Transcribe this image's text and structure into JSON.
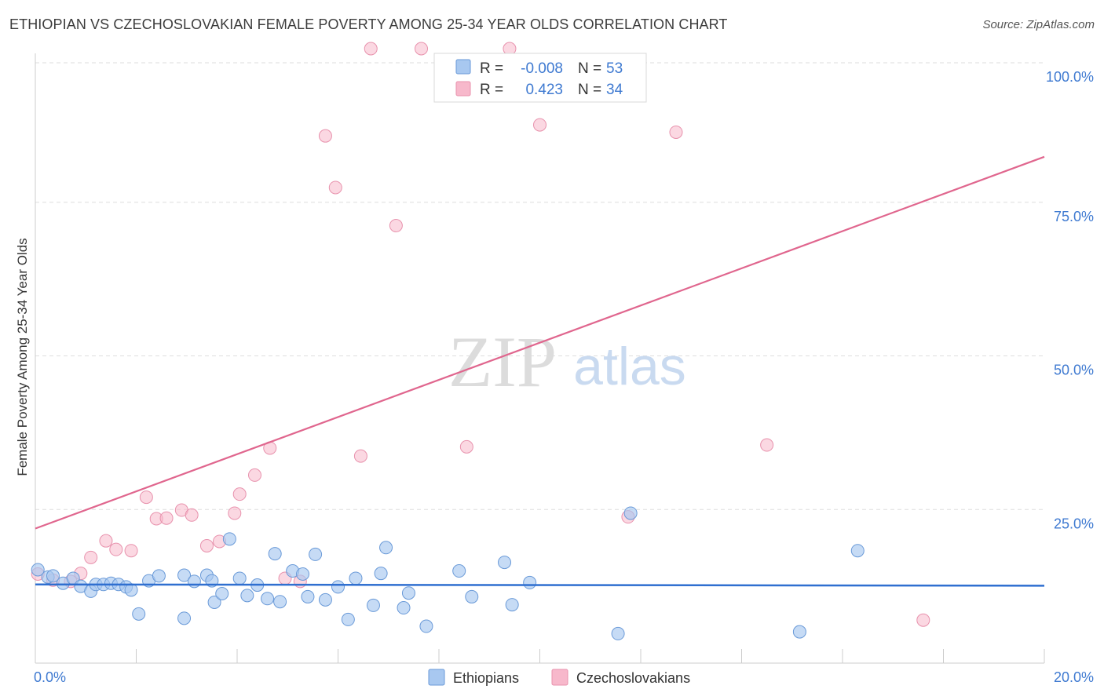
{
  "title": "ETHIOPIAN VS CZECHOSLOVAKIAN FEMALE POVERTY AMONG 25-34 YEAR OLDS CORRELATION CHART",
  "source": "Source: ZipAtlas.com",
  "watermark": {
    "zip": "ZIP",
    "atlas": "atlas"
  },
  "colors": {
    "ethiopians_fill": "#a8c8f0",
    "ethiopians_stroke": "#6a9ad8",
    "ethiopians_line": "#2f6fd0",
    "czech_fill": "#f7b8cb",
    "czech_stroke": "#e892ad",
    "czech_line": "#e0668e",
    "tick_text": "#3f7ad1",
    "grid": "#dddddd"
  },
  "legend": {
    "rows": [
      {
        "r_label": "R =",
        "r_value": "-0.008",
        "n_label": "N =",
        "n_value": "53"
      },
      {
        "r_label": "R =",
        "r_value": "0.423",
        "n_label": "N =",
        "n_value": "34"
      }
    ]
  },
  "chart_data": {
    "type": "scatter",
    "title": "ETHIOPIAN VS CZECHOSLOVAKIAN FEMALE POVERTY AMONG 25-34 YEAR OLDS CORRELATION CHART",
    "xlabel": "",
    "ylabel": "Female Poverty Among 25-34 Year Olds",
    "xlim": [
      0,
      20
    ],
    "ylim": [
      0,
      100
    ],
    "x_tick_labels": [
      "0.0%",
      "20.0%"
    ],
    "y_ticks": [
      25,
      50,
      75,
      100
    ],
    "y_tick_labels": [
      "25.0%",
      "50.0%",
      "75.0%",
      "100.0%"
    ],
    "grid": true,
    "legend_position": "top-center",
    "series": [
      {
        "name": "Ethiopians",
        "r": -0.008,
        "n": 53,
        "trend": {
          "x": [
            0,
            20
          ],
          "y": [
            12.8,
            12.6
          ]
        },
        "points": [
          [
            0.05,
            15.2
          ],
          [
            0.25,
            14.0
          ],
          [
            0.35,
            14.2
          ],
          [
            0.55,
            13.0
          ],
          [
            0.75,
            13.8
          ],
          [
            0.9,
            12.5
          ],
          [
            1.1,
            11.7
          ],
          [
            1.2,
            12.8
          ],
          [
            1.35,
            12.8
          ],
          [
            1.5,
            13.0
          ],
          [
            1.65,
            12.8
          ],
          [
            1.8,
            12.4
          ],
          [
            1.9,
            11.9
          ],
          [
            2.05,
            8.0
          ],
          [
            2.25,
            13.4
          ],
          [
            2.45,
            14.2
          ],
          [
            2.95,
            14.3
          ],
          [
            3.15,
            13.3
          ],
          [
            2.95,
            7.3
          ],
          [
            3.4,
            14.3
          ],
          [
            3.5,
            13.4
          ],
          [
            3.55,
            9.9
          ],
          [
            3.7,
            11.3
          ],
          [
            3.85,
            20.2
          ],
          [
            4.05,
            13.8
          ],
          [
            4.2,
            11.0
          ],
          [
            4.4,
            12.7
          ],
          [
            4.6,
            10.5
          ],
          [
            4.75,
            17.8
          ],
          [
            4.85,
            10.0
          ],
          [
            5.1,
            15.0
          ],
          [
            5.3,
            14.5
          ],
          [
            5.4,
            10.8
          ],
          [
            5.55,
            17.7
          ],
          [
            5.75,
            10.3
          ],
          [
            6.0,
            12.4
          ],
          [
            6.2,
            7.1
          ],
          [
            6.35,
            13.8
          ],
          [
            6.7,
            9.4
          ],
          [
            6.85,
            14.6
          ],
          [
            6.95,
            18.8
          ],
          [
            7.3,
            9.0
          ],
          [
            7.4,
            11.4
          ],
          [
            7.75,
            6.0
          ],
          [
            8.4,
            15.0
          ],
          [
            8.65,
            10.8
          ],
          [
            9.3,
            16.4
          ],
          [
            9.45,
            9.5
          ],
          [
            9.8,
            13.1
          ],
          [
            11.55,
            4.8
          ],
          [
            11.8,
            24.4
          ],
          [
            15.15,
            5.1
          ],
          [
            16.3,
            18.3
          ]
        ]
      },
      {
        "name": "Czechoslovakians",
        "r": 0.423,
        "n": 34,
        "trend": {
          "x": [
            0,
            20
          ],
          "y": [
            21.9,
            82.4
          ]
        },
        "points": [
          [
            0.05,
            14.5
          ],
          [
            0.35,
            13.5
          ],
          [
            0.7,
            13.3
          ],
          [
            0.9,
            14.6
          ],
          [
            1.1,
            17.2
          ],
          [
            1.4,
            19.9
          ],
          [
            1.6,
            18.5
          ],
          [
            1.9,
            18.3
          ],
          [
            2.2,
            27.0
          ],
          [
            2.4,
            23.5
          ],
          [
            2.6,
            23.6
          ],
          [
            2.9,
            24.9
          ],
          [
            3.1,
            24.1
          ],
          [
            3.4,
            19.1
          ],
          [
            3.65,
            19.8
          ],
          [
            3.95,
            24.4
          ],
          [
            4.05,
            27.5
          ],
          [
            4.35,
            30.6
          ],
          [
            4.65,
            35.0
          ],
          [
            4.95,
            13.8
          ],
          [
            5.25,
            13.3
          ],
          [
            5.75,
            85.8
          ],
          [
            5.95,
            77.4
          ],
          [
            6.45,
            33.7
          ],
          [
            6.65,
            100.0
          ],
          [
            7.15,
            71.2
          ],
          [
            7.65,
            100.0
          ],
          [
            8.55,
            35.2
          ],
          [
            9.4,
            100.0
          ],
          [
            10.0,
            87.6
          ],
          [
            11.75,
            23.8
          ],
          [
            12.7,
            86.4
          ],
          [
            14.5,
            35.5
          ],
          [
            17.6,
            7.0
          ]
        ]
      }
    ]
  }
}
